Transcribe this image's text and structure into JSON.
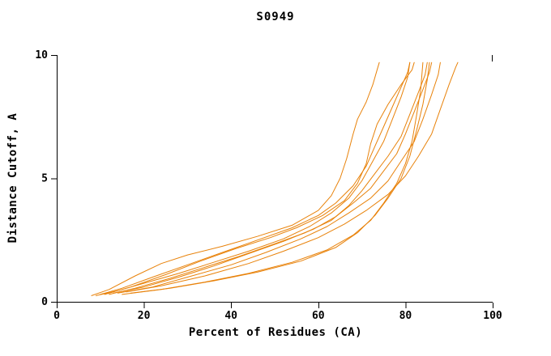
{
  "chart_data": {
    "type": "line",
    "title": "S0949",
    "xlabel": "Percent of Residues (CA)",
    "ylabel": "Distance Cutoff, A",
    "xlim": [
      0,
      100
    ],
    "ylim": [
      0,
      10
    ],
    "x_ticks": [
      0,
      20,
      40,
      60,
      80,
      100
    ],
    "y_ticks": [
      0,
      5,
      10
    ],
    "grid": false,
    "legend": "none",
    "line_color": "#e8820a",
    "axis_color": "#000000",
    "series": [
      [
        [
          8,
          0.25
        ],
        [
          12,
          0.5
        ],
        [
          18,
          1.05
        ],
        [
          24,
          1.55
        ],
        [
          30,
          1.9
        ],
        [
          38,
          2.25
        ],
        [
          46,
          2.65
        ],
        [
          54,
          3.1
        ],
        [
          60,
          3.7
        ],
        [
          63,
          4.3
        ],
        [
          65,
          5.0
        ],
        [
          66.5,
          5.8
        ],
        [
          68,
          6.8
        ],
        [
          69,
          7.4
        ],
        [
          71,
          8.1
        ],
        [
          72.5,
          8.8
        ],
        [
          73.5,
          9.4
        ],
        [
          74,
          9.7
        ]
      ],
      [
        [
          10,
          0.3
        ],
        [
          15,
          0.55
        ],
        [
          22,
          1.0
        ],
        [
          30,
          1.5
        ],
        [
          38,
          2.0
        ],
        [
          46,
          2.5
        ],
        [
          54,
          3.0
        ],
        [
          60,
          3.5
        ],
        [
          64,
          4.0
        ],
        [
          68,
          4.7
        ],
        [
          71,
          5.5
        ],
        [
          73,
          6.3
        ],
        [
          75,
          7.1
        ],
        [
          77,
          7.9
        ],
        [
          79,
          8.7
        ],
        [
          80.5,
          9.3
        ],
        [
          81,
          9.7
        ]
      ],
      [
        [
          12,
          0.3
        ],
        [
          18,
          0.55
        ],
        [
          26,
          0.95
        ],
        [
          34,
          1.4
        ],
        [
          42,
          1.85
        ],
        [
          50,
          2.35
        ],
        [
          57,
          2.8
        ],
        [
          63,
          3.3
        ],
        [
          67,
          3.9
        ],
        [
          70,
          4.5
        ],
        [
          73,
          5.2
        ],
        [
          76,
          5.9
        ],
        [
          79,
          6.7
        ],
        [
          81,
          7.6
        ],
        [
          83,
          8.5
        ],
        [
          84.5,
          9.2
        ],
        [
          85,
          9.7
        ]
      ],
      [
        [
          13,
          0.35
        ],
        [
          20,
          0.6
        ],
        [
          28,
          1.0
        ],
        [
          36,
          1.45
        ],
        [
          44,
          1.95
        ],
        [
          52,
          2.45
        ],
        [
          59,
          2.95
        ],
        [
          64,
          3.45
        ],
        [
          68,
          4.0
        ],
        [
          72,
          4.6
        ],
        [
          75,
          5.3
        ],
        [
          78,
          6.0
        ],
        [
          80,
          6.8
        ],
        [
          82,
          7.7
        ],
        [
          84,
          8.6
        ],
        [
          85.5,
          9.3
        ],
        [
          86,
          9.7
        ]
      ],
      [
        [
          14,
          0.35
        ],
        [
          22,
          0.6
        ],
        [
          30,
          1.0
        ],
        [
          40,
          1.5
        ],
        [
          48,
          2.0
        ],
        [
          56,
          2.55
        ],
        [
          62,
          3.05
        ],
        [
          67,
          3.6
        ],
        [
          72,
          4.2
        ],
        [
          76,
          4.9
        ],
        [
          79,
          5.7
        ],
        [
          82,
          6.5
        ],
        [
          84,
          7.4
        ],
        [
          86,
          8.4
        ],
        [
          87.5,
          9.2
        ],
        [
          88,
          9.7
        ]
      ],
      [
        [
          16,
          0.4
        ],
        [
          24,
          0.65
        ],
        [
          34,
          1.05
        ],
        [
          44,
          1.55
        ],
        [
          52,
          2.05
        ],
        [
          60,
          2.6
        ],
        [
          66,
          3.15
        ],
        [
          71,
          3.7
        ],
        [
          76,
          4.35
        ],
        [
          80,
          5.1
        ],
        [
          83,
          5.9
        ],
        [
          86,
          6.8
        ],
        [
          88,
          7.8
        ],
        [
          90,
          8.8
        ],
        [
          91.5,
          9.5
        ],
        [
          92,
          9.7
        ]
      ],
      [
        [
          15,
          0.3
        ],
        [
          24,
          0.5
        ],
        [
          34,
          0.8
        ],
        [
          44,
          1.15
        ],
        [
          54,
          1.6
        ],
        [
          62,
          2.1
        ],
        [
          68,
          2.7
        ],
        [
          72,
          3.3
        ],
        [
          75,
          4.0
        ],
        [
          78,
          4.8
        ],
        [
          80,
          5.6
        ],
        [
          81.5,
          6.5
        ],
        [
          82.5,
          7.5
        ],
        [
          83.5,
          8.6
        ],
        [
          84,
          9.7
        ]
      ],
      [
        [
          17,
          0.35
        ],
        [
          26,
          0.55
        ],
        [
          36,
          0.85
        ],
        [
          46,
          1.2
        ],
        [
          56,
          1.65
        ],
        [
          64,
          2.2
        ],
        [
          69,
          2.8
        ],
        [
          73,
          3.5
        ],
        [
          76,
          4.2
        ],
        [
          79,
          5.0
        ],
        [
          81,
          5.9
        ],
        [
          82.5,
          6.9
        ],
        [
          84,
          8.0
        ],
        [
          85,
          9.0
        ],
        [
          85.5,
          9.7
        ]
      ],
      [
        [
          9,
          0.25
        ],
        [
          14,
          0.45
        ],
        [
          20,
          0.75
        ],
        [
          28,
          1.15
        ],
        [
          36,
          1.6
        ],
        [
          44,
          2.05
        ],
        [
          52,
          2.55
        ],
        [
          58,
          3.05
        ],
        [
          63,
          3.6
        ],
        [
          67,
          4.2
        ],
        [
          70,
          4.9
        ],
        [
          72.5,
          5.7
        ],
        [
          75,
          6.5
        ],
        [
          77,
          7.4
        ],
        [
          79,
          8.3
        ],
        [
          80.5,
          9.1
        ],
        [
          81,
          9.7
        ]
      ],
      [
        [
          11,
          0.3
        ],
        [
          17,
          0.6
        ],
        [
          25,
          1.1
        ],
        [
          33,
          1.65
        ],
        [
          41,
          2.15
        ],
        [
          49,
          2.6
        ],
        [
          55,
          3.0
        ],
        [
          61,
          3.5
        ],
        [
          66,
          4.1
        ],
        [
          69,
          4.8
        ],
        [
          71,
          5.6
        ],
        [
          72,
          6.4
        ],
        [
          73.5,
          7.2
        ],
        [
          76,
          8.0
        ],
        [
          79,
          8.8
        ],
        [
          81.5,
          9.4
        ],
        [
          82,
          9.7
        ]
      ]
    ]
  }
}
